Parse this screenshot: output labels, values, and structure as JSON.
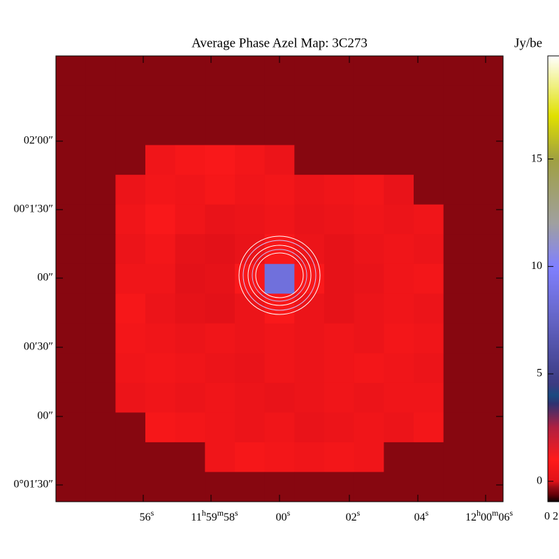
{
  "chart_data": {
    "type": "heatmap",
    "title": "Average  Phase Azel Map: 3C273",
    "colorbar_label": "Jy/be",
    "colorbar_footer": "0 2",
    "ylabels": [
      "02′00″",
      "00°1′30″",
      "00″",
      "00′30″",
      "00″",
      "0°01′30″"
    ],
    "xlabels": [
      [
        "56",
        "s"
      ],
      [
        "11",
        "h",
        "59",
        "m",
        "58",
        "s"
      ],
      [
        "00",
        "s"
      ],
      [
        "02",
        "s"
      ],
      [
        "04",
        "s"
      ],
      [
        "12",
        "h",
        "00",
        "m",
        "06",
        "s"
      ]
    ],
    "colorbar_lim": [
      -0.95,
      19.8
    ],
    "colorbar_ticks": [
      0,
      5,
      10,
      15
    ],
    "colormap": [
      [
        -1,
        "#000000"
      ],
      [
        -0.6,
        "#6a0008"
      ],
      [
        -0.3,
        "#950a14"
      ],
      [
        0,
        "#e01018"
      ],
      [
        1,
        "#ff1a1a"
      ],
      [
        2.5,
        "#b02040"
      ],
      [
        3.6,
        "#303070"
      ],
      [
        4,
        "#1a4a80"
      ],
      [
        4.5,
        "#3a3a80"
      ],
      [
        8,
        "#6a6ad0"
      ],
      [
        10,
        "#8080ff"
      ],
      [
        12,
        "#a0a0a0"
      ],
      [
        15,
        "#a0a040"
      ],
      [
        17,
        "#e0e000"
      ],
      [
        19.8,
        "#ffffff"
      ]
    ],
    "values": [
      [
        -0.4,
        -0.4,
        -0.4,
        -0.4,
        -0.4,
        -0.4,
        -0.4,
        -0.4,
        -0.4,
        -0.4,
        -0.4,
        -0.4,
        -0.4,
        -0.4,
        -0.4
      ],
      [
        -0.4,
        -0.4,
        -0.4,
        -0.4,
        -0.4,
        -0.4,
        -0.4,
        -0.4,
        -0.4,
        -0.4,
        -0.4,
        -0.4,
        -0.4,
        -0.4,
        -0.4
      ],
      [
        -0.4,
        -0.4,
        -0.4,
        -0.4,
        -0.4,
        -0.4,
        -0.4,
        -0.4,
        -0.4,
        -0.4,
        -0.4,
        -0.4,
        -0.4,
        -0.4,
        -0.4
      ],
      [
        -0.4,
        -0.4,
        -0.4,
        0.5,
        0.7,
        0.8,
        0.6,
        0.4,
        -0.4,
        -0.4,
        -0.4,
        -0.4,
        -0.4,
        -0.4,
        -0.4
      ],
      [
        -0.4,
        -0.4,
        0.4,
        0.6,
        0.5,
        0.7,
        0.5,
        0.6,
        0.4,
        0.5,
        0.6,
        0.3,
        -0.4,
        -0.4,
        -0.4
      ],
      [
        -0.4,
        -0.4,
        0.5,
        0.8,
        0.5,
        0.3,
        0.4,
        0.5,
        0.3,
        0.4,
        0.5,
        0.4,
        0.5,
        -0.4,
        -0.4
      ],
      [
        -0.4,
        -0.4,
        0.4,
        0.6,
        0.2,
        0.1,
        0.3,
        0.8,
        0.4,
        0.2,
        0.4,
        0.5,
        0.4,
        -0.4,
        -0.4
      ],
      [
        -0.4,
        -0.4,
        0.5,
        0.5,
        0.1,
        0.2,
        0.8,
        8.5,
        0.8,
        0.2,
        0.3,
        0.5,
        0.6,
        -0.4,
        -0.4
      ],
      [
        -0.4,
        -0.4,
        0.7,
        0.4,
        0.2,
        0.1,
        0.4,
        0.8,
        0.4,
        0.2,
        0.4,
        0.5,
        0.4,
        -0.4,
        -0.4
      ],
      [
        -0.4,
        -0.4,
        0.6,
        0.5,
        0.4,
        0.5,
        0.4,
        0.5,
        0.4,
        0.5,
        0.4,
        0.6,
        0.5,
        -0.4,
        -0.4
      ],
      [
        -0.4,
        -0.4,
        0.5,
        0.6,
        0.5,
        0.4,
        0.3,
        0.5,
        0.4,
        0.5,
        0.6,
        0.5,
        0.4,
        -0.4,
        -0.4
      ],
      [
        -0.4,
        -0.4,
        0.4,
        0.5,
        0.4,
        0.5,
        0.4,
        0.3,
        0.4,
        0.5,
        0.4,
        0.5,
        0.5,
        -0.4,
        -0.4
      ],
      [
        -0.4,
        -0.4,
        -0.4,
        0.7,
        0.6,
        0.5,
        0.4,
        0.5,
        0.3,
        0.4,
        0.5,
        0.4,
        0.6,
        -0.4,
        -0.4
      ],
      [
        -0.4,
        -0.4,
        -0.4,
        -0.4,
        -0.4,
        0.5,
        0.7,
        0.6,
        0.5,
        0.6,
        0.5,
        -0.4,
        -0.4,
        -0.4,
        -0.4
      ],
      [
        -0.4,
        -0.4,
        -0.4,
        -0.4,
        -0.4,
        -0.4,
        -0.4,
        -0.4,
        -0.4,
        -0.4,
        -0.4,
        -0.4,
        -0.4,
        -0.4,
        -0.4
      ]
    ]
  }
}
